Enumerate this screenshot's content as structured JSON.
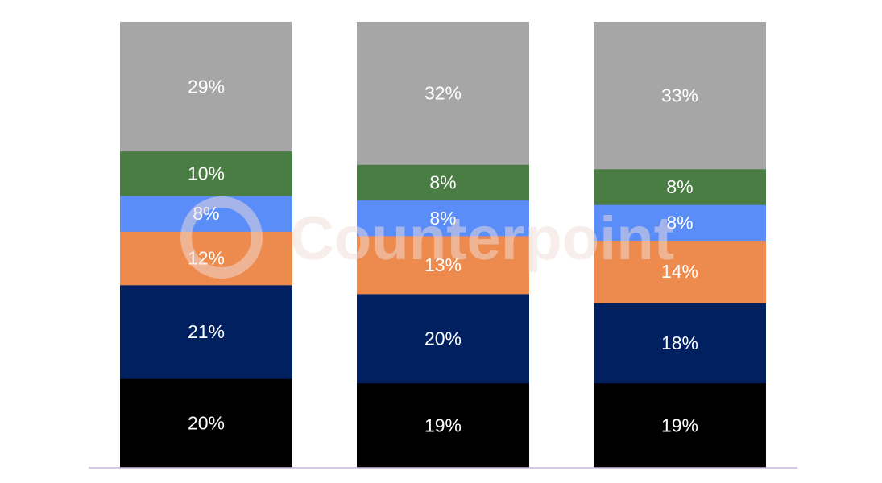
{
  "chart_data": {
    "type": "bar",
    "stacked": true,
    "normalized": true,
    "categories": [
      "",
      "",
      ""
    ],
    "series": [
      {
        "color": "#000000",
        "values": [
          20,
          19,
          19
        ]
      },
      {
        "color": "#002060",
        "values": [
          21,
          20,
          18
        ]
      },
      {
        "color": "#ED8B4E",
        "values": [
          12,
          13,
          14
        ]
      },
      {
        "color": "#5B8DF9",
        "values": [
          8,
          8,
          8
        ]
      },
      {
        "color": "#4A7D43",
        "values": [
          10,
          8,
          8
        ]
      },
      {
        "color": "#A6A6A6",
        "values": [
          29,
          32,
          33
        ]
      }
    ],
    "labels": [
      [
        "20%",
        "19%",
        "19%"
      ],
      [
        "21%",
        "20%",
        "18%"
      ],
      [
        "12%",
        "13%",
        "14%"
      ],
      [
        "8%",
        "8%",
        "8%"
      ],
      [
        "10%",
        "8%",
        "8%"
      ],
      [
        "29%",
        "32%",
        "33%"
      ]
    ],
    "ylim": [
      0,
      100
    ],
    "grid": false,
    "legend": "none",
    "baseline_color": "#C9B8DD"
  },
  "watermark": {
    "text": "Counterpoint",
    "color": "#F3E6E2"
  }
}
